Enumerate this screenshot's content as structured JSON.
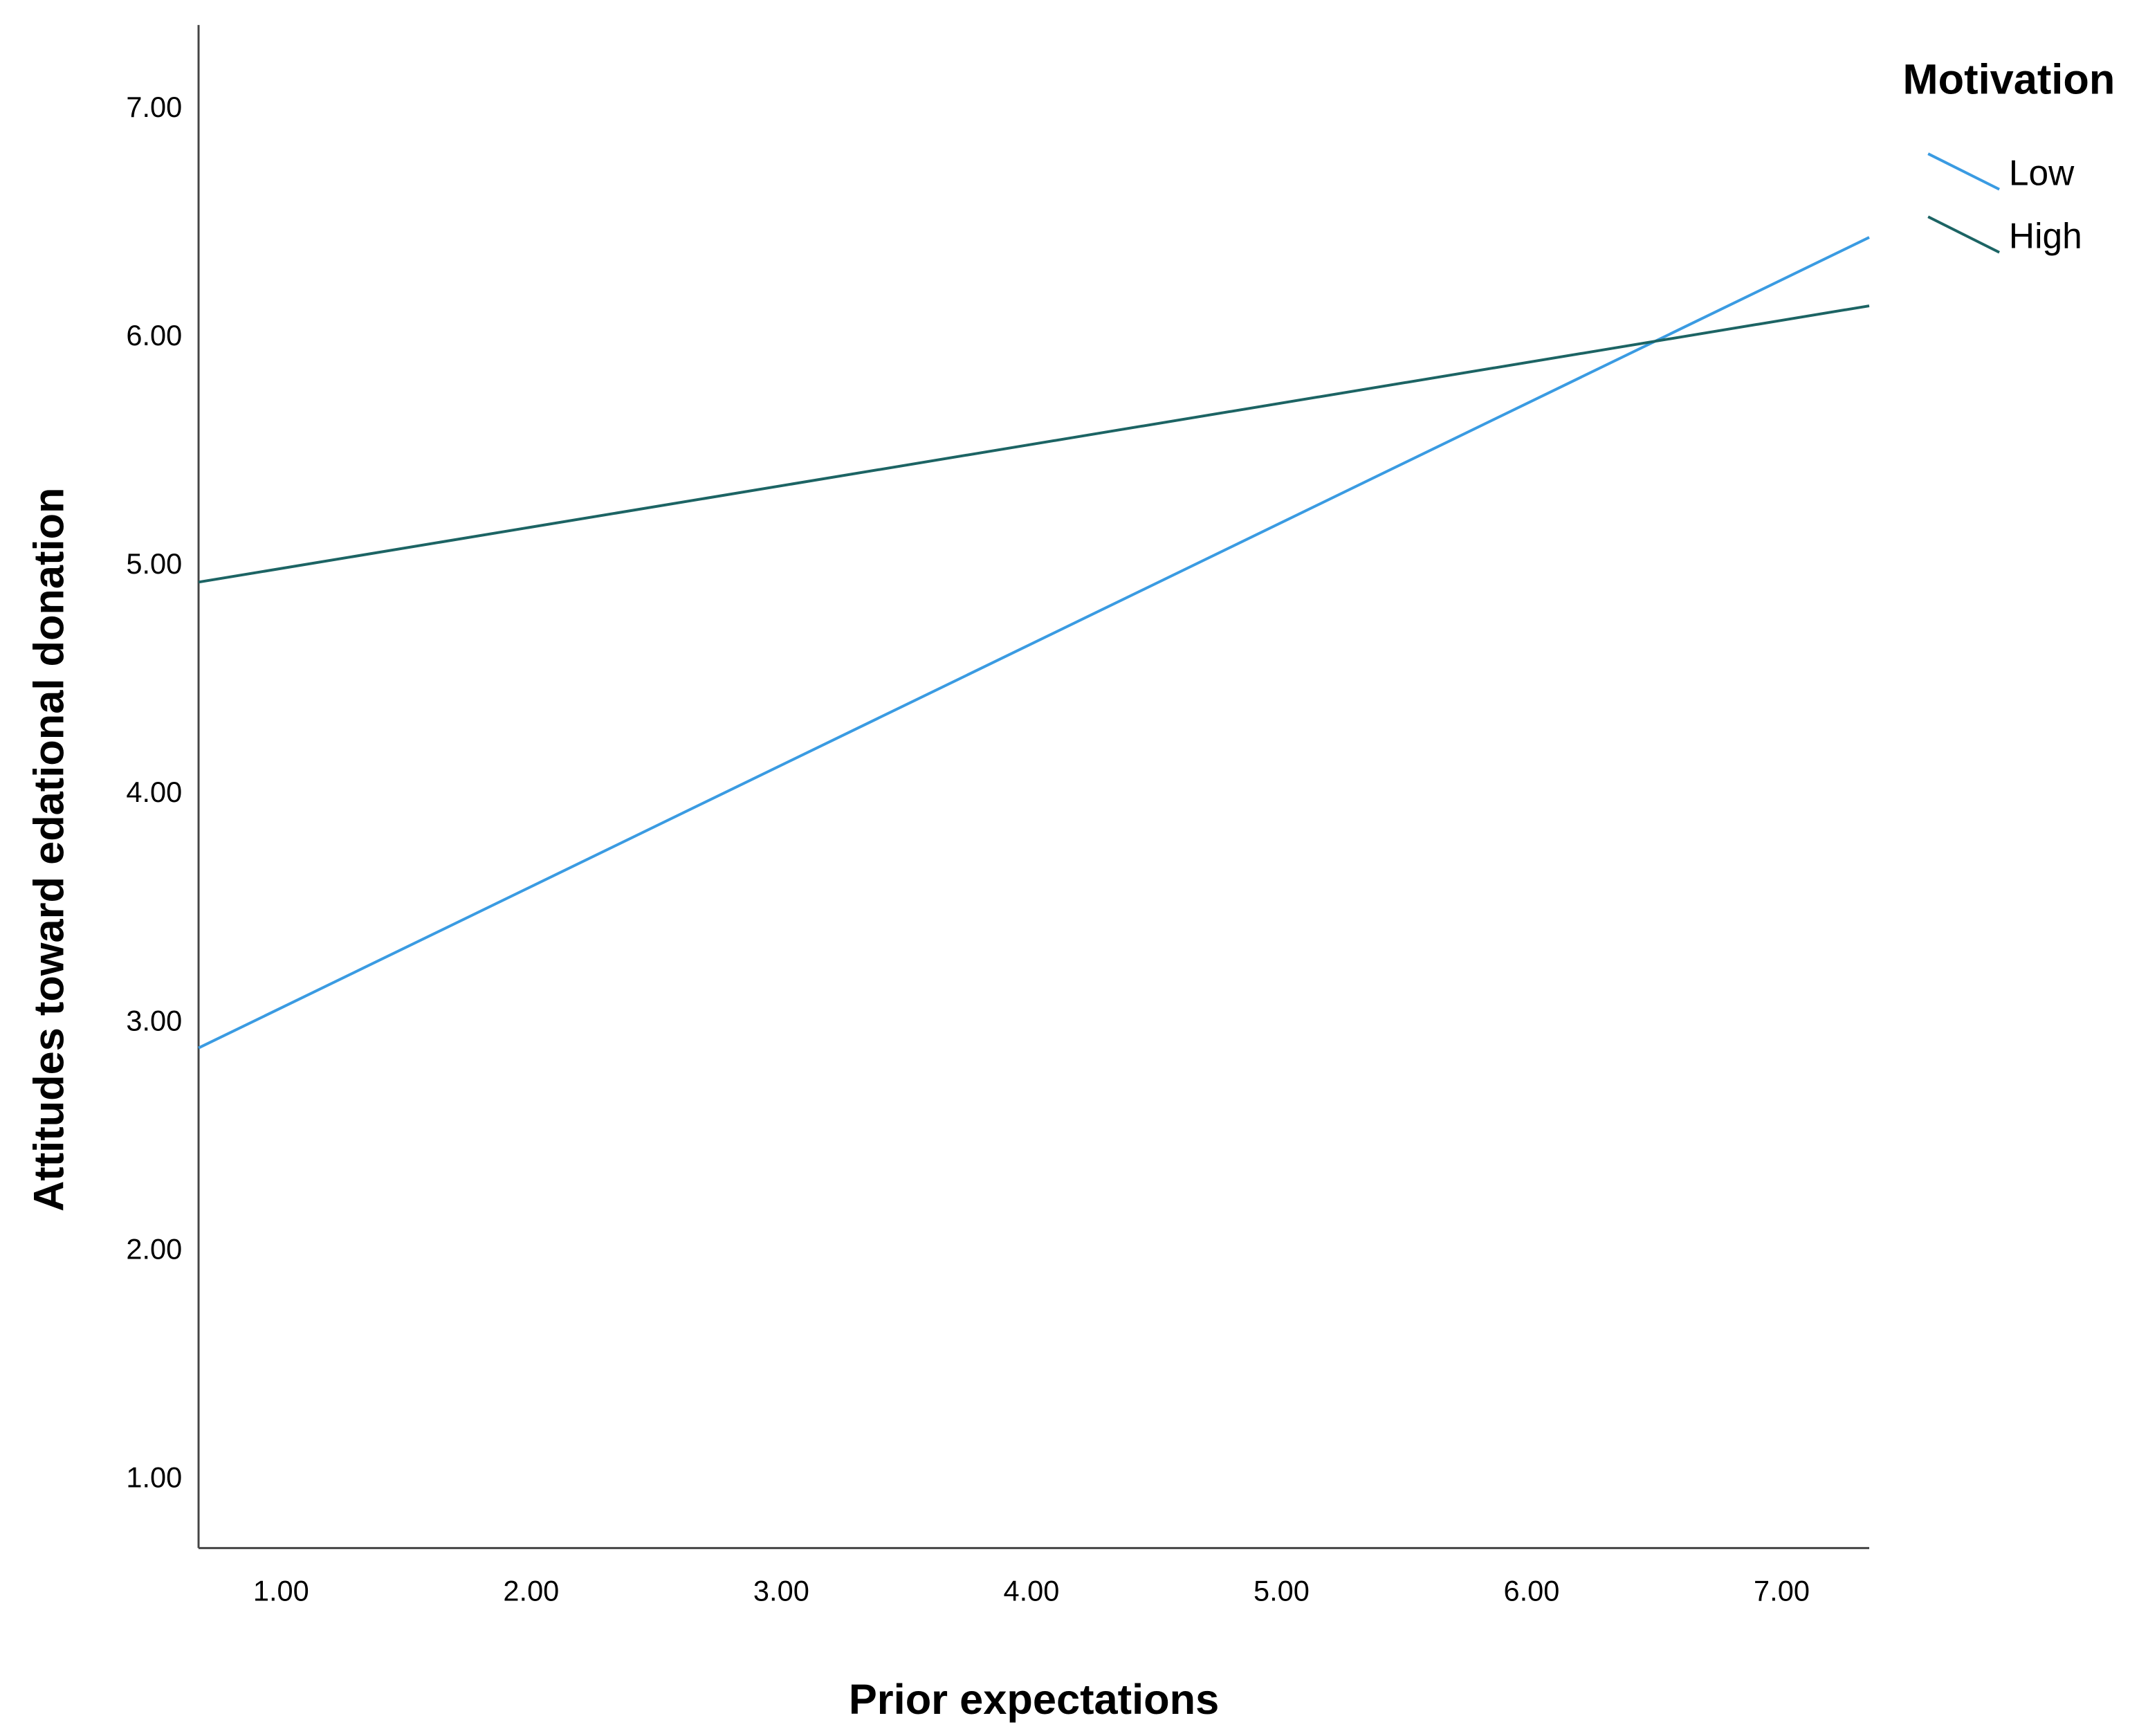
{
  "chart_data": {
    "type": "line",
    "x_label": "Prior expectations",
    "y_label": "Attitudes toward edational donation",
    "legend_title": "Motivation",
    "legend_position": "right",
    "x": [
      0.67,
      7.35
    ],
    "series": [
      {
        "name": "Low",
        "color": "#3a9be2",
        "values": [
          2.89,
          6.44
        ]
      },
      {
        "name": "High",
        "color": "#1c6464",
        "values": [
          4.93,
          6.14
        ]
      }
    ],
    "xlim": [
      0.67,
      7.35
    ],
    "ylim": [
      0.7,
      7.37
    ],
    "xticks": [
      {
        "value": 1,
        "label": "1.00"
      },
      {
        "value": 2,
        "label": "2.00"
      },
      {
        "value": 3,
        "label": "3.00"
      },
      {
        "value": 4,
        "label": "4.00"
      },
      {
        "value": 5,
        "label": "5.00"
      },
      {
        "value": 6,
        "label": "6.00"
      },
      {
        "value": 7,
        "label": "7.00"
      }
    ],
    "yticks": [
      {
        "value": 1,
        "label": "1.00"
      },
      {
        "value": 2,
        "label": "2.00"
      },
      {
        "value": 3,
        "label": "3.00"
      },
      {
        "value": 4,
        "label": "4.00"
      },
      {
        "value": 5,
        "label": "5.00"
      },
      {
        "value": 6,
        "label": "6.00"
      },
      {
        "value": 7,
        "label": "7.00"
      }
    ],
    "grid": false
  }
}
